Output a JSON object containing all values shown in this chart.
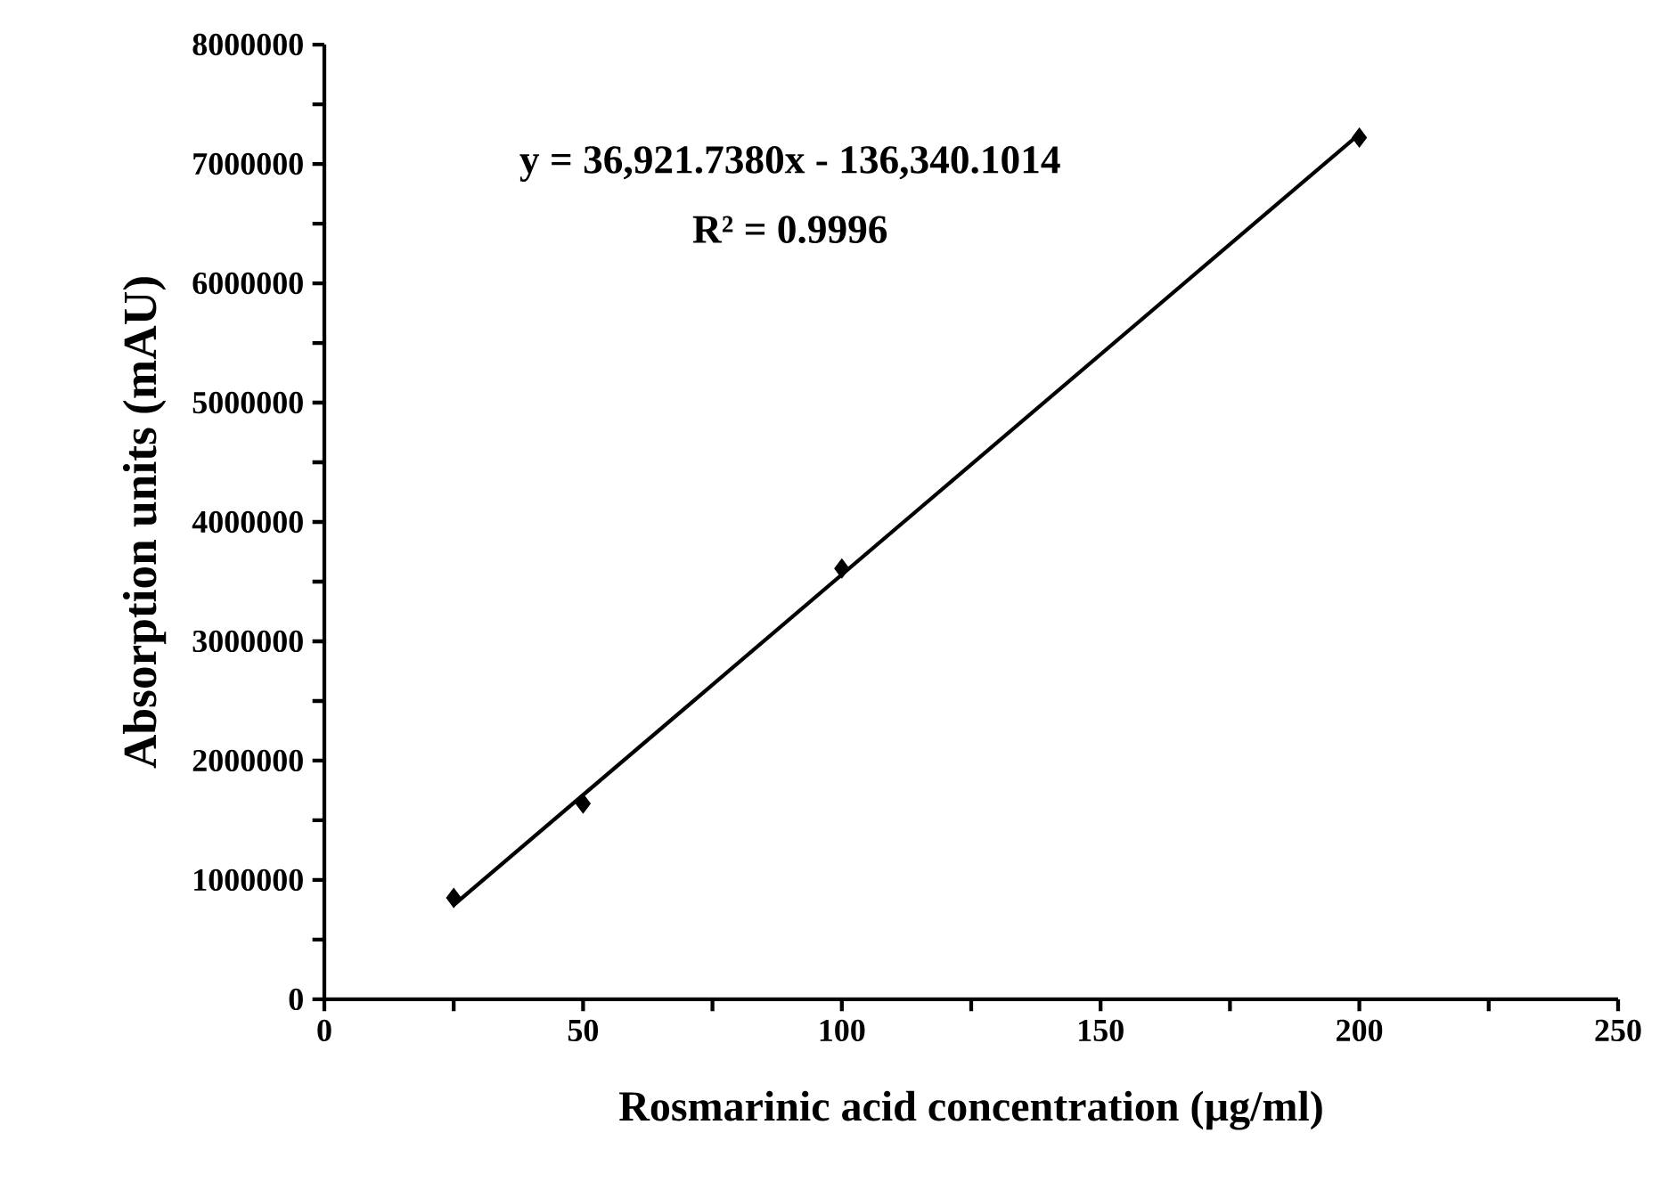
{
  "chart_data": {
    "type": "scatter",
    "xlabel": "Rosmarinic acid concentration (µg/ml)",
    "ylabel": "Absorption units (mAU)",
    "annotations": [
      "y = 36,921.7380x - 136,340.1014",
      "R² = 0.9996"
    ],
    "series": [
      {
        "color": "#000000",
        "marker": "diamond",
        "x": [
          25,
          50,
          100,
          200
        ],
        "values": [
          850000,
          1640000,
          3610000,
          7220000
        ]
      },
      {
        "type": "line",
        "color": "#000000",
        "marker": "none",
        "line_style": "solid",
        "x": [
          25,
          200
        ],
        "values": [
          790000,
          7250000
        ]
      }
    ],
    "xlim": [
      0,
      250
    ],
    "xticks": [
      0,
      {
        "value": 25,
        "label": null
      },
      50,
      {
        "value": 75,
        "label": null
      },
      100,
      {
        "value": 125,
        "label": null
      },
      150,
      {
        "value": 175,
        "label": null
      },
      200,
      {
        "value": 225,
        "label": null
      },
      250
    ],
    "ylim": [
      0,
      8000000
    ],
    "yticks": [
      0,
      {
        "value": 500000,
        "label": null
      },
      1000000,
      {
        "value": 1500000,
        "label": null
      },
      2000000,
      {
        "value": 2500000,
        "label": null
      },
      3000000,
      {
        "value": 3500000,
        "label": null
      },
      4000000,
      {
        "value": 4500000,
        "label": null
      },
      5000000,
      {
        "value": 5500000,
        "label": null
      },
      6000000,
      {
        "value": 6500000,
        "label": null
      },
      7000000,
      {
        "value": 7500000,
        "label": null
      },
      8000000
    ],
    "grid": false
  }
}
